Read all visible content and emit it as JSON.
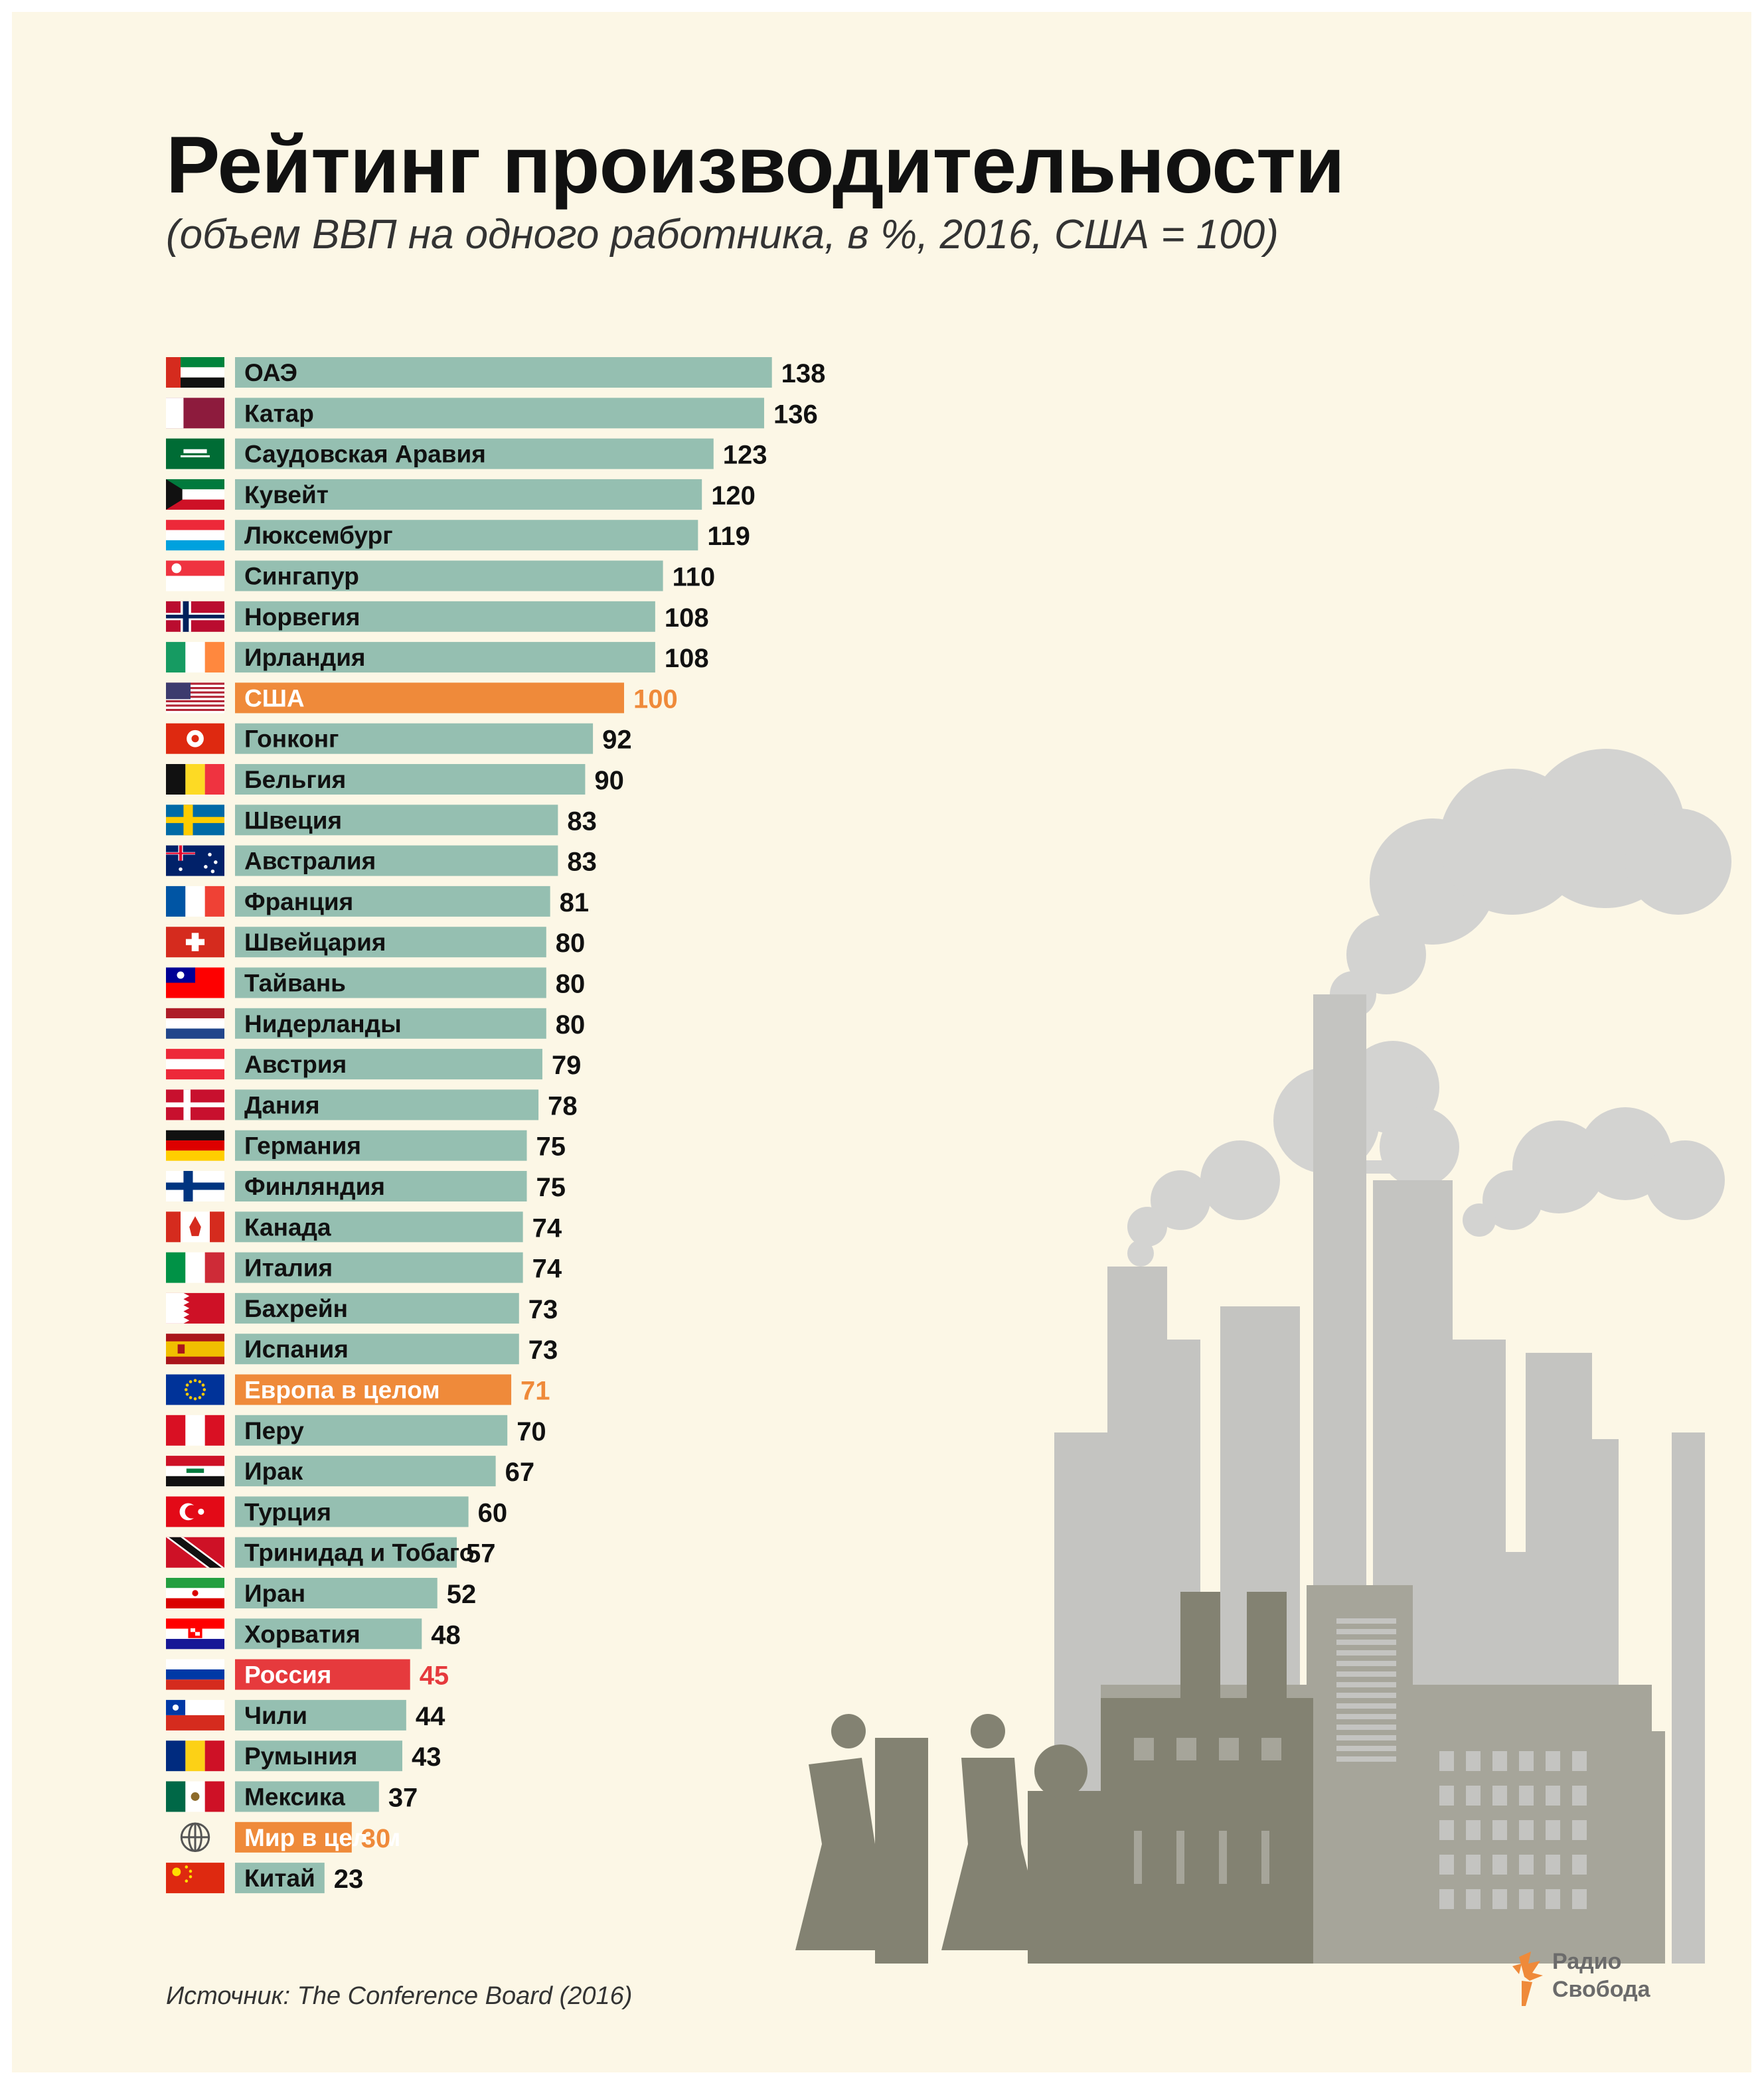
{
  "header": {
    "title": "Рейтинг производительности",
    "subtitle": "(объем ВВП на одного работника, в %, 2016, США = 100)"
  },
  "footer": {
    "source": "Источник: The Conference Board (2016)",
    "logo_line1": "Радио",
    "logo_line2": "Свобода"
  },
  "colors": {
    "background": "#fcf7e6",
    "bar_default": "#95bfb1",
    "bar_highlight": "#ef8a3a",
    "bar_russia": "#e63a3d",
    "text_dark": "#111111",
    "factory_dark": "#838272",
    "factory_mid": "#a6a59a",
    "factory_light": "#c4c4c1",
    "smoke": "#d3d3d1"
  },
  "chart_data": {
    "type": "bar",
    "orientation": "horizontal",
    "title": "Рейтинг производительности",
    "subtitle": "(объем ВВП на одного работника, в %, 2016, США = 100)",
    "categories": [
      "ОАЭ",
      "Катар",
      "Саудовская Аравия",
      "Кувейт",
      "Люксембург",
      "Сингапур",
      "Норвегия",
      "Ирландия",
      "США",
      "Гонконг",
      "Бельгия",
      "Швеция",
      "Австралия",
      "Франция",
      "Швейцария",
      "Тайвань",
      "Нидерланды",
      "Австрия",
      "Дания",
      "Германия",
      "Финляндия",
      "Канада",
      "Италия",
      "Бахрейн",
      "Испания",
      "Европа в целом",
      "Перу",
      "Ирак",
      "Турция",
      "Тринидад и Тобаго",
      "Иран",
      "Хорватия",
      "Россия",
      "Чили",
      "Румыния",
      "Мексика",
      "Мир в целом",
      "Китай"
    ],
    "values": [
      138,
      136,
      123,
      120,
      119,
      110,
      108,
      108,
      100,
      92,
      90,
      83,
      83,
      81,
      80,
      80,
      80,
      79,
      78,
      75,
      75,
      74,
      74,
      73,
      73,
      71,
      70,
      67,
      60,
      57,
      52,
      48,
      45,
      44,
      43,
      37,
      30,
      23
    ],
    "highlight": [
      "none",
      "none",
      "none",
      "none",
      "none",
      "none",
      "none",
      "none",
      "orange",
      "none",
      "none",
      "none",
      "none",
      "none",
      "none",
      "none",
      "none",
      "none",
      "none",
      "none",
      "none",
      "none",
      "none",
      "none",
      "none",
      "orange",
      "none",
      "none",
      "none",
      "none",
      "none",
      "none",
      "red",
      "none",
      "none",
      "none",
      "orange",
      "none"
    ],
    "flags": [
      "flag-uae",
      "flag-qatar",
      "flag-saudi-arabia",
      "flag-kuwait",
      "flag-luxembourg",
      "flag-singapore",
      "flag-norway",
      "flag-ireland",
      "flag-usa",
      "flag-hong-kong",
      "flag-belgium",
      "flag-sweden",
      "flag-australia",
      "flag-france",
      "flag-switzerland",
      "flag-taiwan",
      "flag-netherlands",
      "flag-austria",
      "flag-denmark",
      "flag-germany",
      "flag-finland",
      "flag-canada",
      "flag-italy",
      "flag-bahrain",
      "flag-spain",
      "flag-eu",
      "flag-peru",
      "flag-iraq",
      "flag-turkey",
      "flag-trinidad-tobago",
      "flag-iran",
      "flag-croatia",
      "flag-russia",
      "flag-chile",
      "flag-romania",
      "flag-mexico",
      "globe-icon",
      "flag-china"
    ],
    "xlim": [
      0,
      138
    ],
    "grid": false,
    "legend": "none"
  }
}
